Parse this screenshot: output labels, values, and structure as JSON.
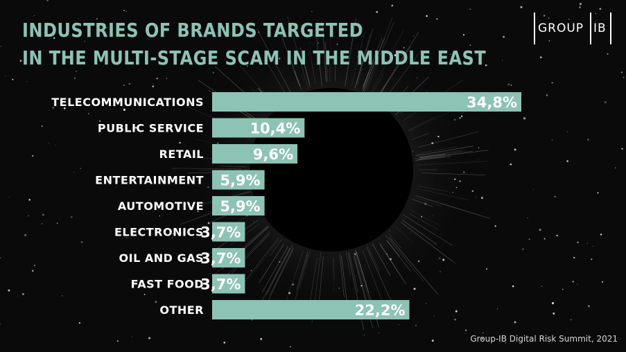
{
  "header": {
    "title_line1": "INDUSTRIES OF BRANDS TARGETED",
    "title_line2": "IN THE MULTI-STAGE SCAM IN THE MIDDLE EAST"
  },
  "logo": {
    "word1": "GROUP",
    "word2": "IB"
  },
  "footer": {
    "text": "Group-IB Digital Risk Summit, 2021"
  },
  "colors": {
    "bar": "#8cc3b4",
    "title": "#8cc3b4",
    "text": "#ffffff",
    "background": "#0a0a0b"
  },
  "chart_data": {
    "type": "bar",
    "orientation": "horizontal",
    "categories": [
      "TELECOMMUNICATIONS",
      "PUBLIC SERVICE",
      "RETAIL",
      "ENTERTAINMENT",
      "AUTOMOTIVE",
      "ELECTRONICS",
      "OIL AND GAS",
      "FAST FOOD",
      "OTHER"
    ],
    "values": [
      34.8,
      10.4,
      9.6,
      5.9,
      5.9,
      3.7,
      3.7,
      3.7,
      22.2
    ],
    "value_labels": [
      "34,8%",
      "10,4%",
      "9,6%",
      "5,9%",
      "5,9%",
      "3,7%",
      "3,7%",
      "3,7%",
      "22,2%"
    ],
    "title": "INDUSTRIES OF BRANDS TARGETED IN THE MULTI-STAGE SCAM IN THE MIDDLE EAST",
    "xlabel": "",
    "ylabel": "",
    "xlim": [
      0,
      34.8
    ],
    "grid": false,
    "legend": "none"
  }
}
